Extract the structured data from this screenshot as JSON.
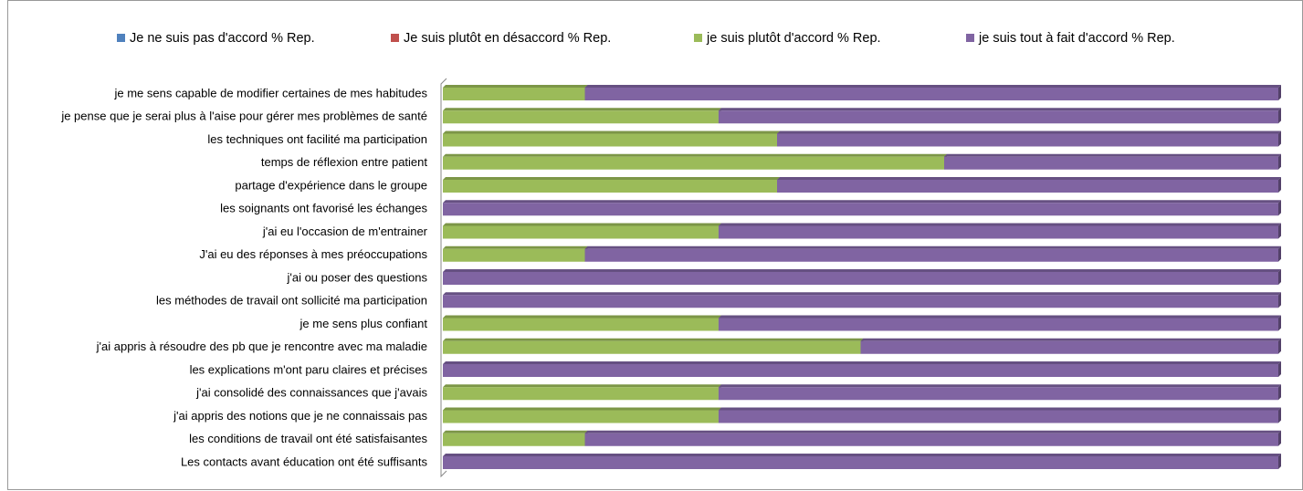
{
  "chart_data": {
    "type": "stacked-bar-horizontal",
    "categories": [
      "je me sens capable de modifier certaines de mes habitudes",
      "je pense que je serai plus à l'aise pour gérer mes problèmes de santé",
      "les techniques ont facilité ma participation",
      "temps de réflexion entre patient",
      "partage d'expérience dans le groupe",
      "les soignants ont favorisé les échanges",
      "j'ai eu l'occasion de m'entrainer",
      "J'ai eu des réponses à mes préoccupations",
      "j'ai ou poser des questions",
      "les méthodes de travail ont sollicité ma participation",
      "je me sens plus confiant",
      "j'ai appris à résoudre des pb que je rencontre avec ma maladie",
      "les explications m'ont paru claires et précises",
      "j'ai consolidé des connaissances que j'avais",
      "j'ai appris des notions que je ne connaissais pas",
      "les conditions de travail ont été satisfaisantes",
      "Les contacts avant éducation ont été suffisants"
    ],
    "series": [
      {
        "name": "Je ne suis pas d'accord % Rep.",
        "color": "#4f81bd",
        "values": [
          0,
          0,
          0,
          0,
          0,
          0,
          0,
          0,
          0,
          0,
          0,
          0,
          0,
          0,
          0,
          0,
          0
        ]
      },
      {
        "name": "Je suis plutôt en désaccord % Rep.",
        "color": "#c0504d",
        "values": [
          0,
          0,
          0,
          0,
          0,
          0,
          0,
          0,
          0,
          0,
          0,
          0,
          0,
          0,
          0,
          0,
          0
        ]
      },
      {
        "name": "je suis plutôt d'accord % Rep.",
        "color": "#9bbb59",
        "values": [
          17,
          33,
          40,
          60,
          40,
          0,
          33,
          17,
          0,
          0,
          33,
          50,
          0,
          33,
          33,
          17,
          0
        ]
      },
      {
        "name": "je suis tout à fait d'accord % Rep.",
        "color": "#8064a2",
        "values": [
          83,
          67,
          60,
          40,
          60,
          100,
          67,
          83,
          100,
          100,
          67,
          50,
          100,
          67,
          67,
          83,
          100
        ]
      }
    ],
    "xlim": [
      0,
      100
    ],
    "legend": "top"
  }
}
